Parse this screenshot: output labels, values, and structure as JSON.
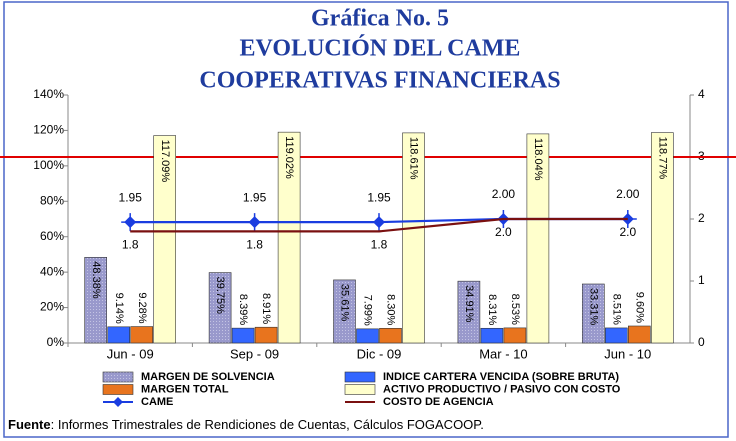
{
  "chart_data": {
    "type": "bar",
    "title": [
      "Gráfica No. 5",
      "EVOLUCIÓN DEL CAME",
      "COOPERATIVAS FINANCIERAS"
    ],
    "categories": [
      "Jun - 09",
      "Sep - 09",
      "Dic - 09",
      "Mar - 10",
      "Jun - 10"
    ],
    "ylim": [
      0,
      140
    ],
    "yticks": [
      {
        "value": 0,
        "label": "0%"
      },
      {
        "value": 20,
        "label": "20%"
      },
      {
        "value": 40,
        "label": "40%"
      },
      {
        "value": 60,
        "label": "60%"
      },
      {
        "value": 80,
        "label": "80%"
      },
      {
        "value": 100,
        "label": "100%"
      },
      {
        "value": 120,
        "label": "120%"
      },
      {
        "value": 140,
        "label": "140%"
      }
    ],
    "y2lim": [
      0,
      4
    ],
    "y2ticks": [
      0,
      1,
      2,
      3,
      4
    ],
    "reference_line": {
      "axis": "y2",
      "value": 3,
      "color": "#e00000"
    },
    "series": [
      {
        "name": "MARGEN DE SOLVENCIA",
        "type": "bar",
        "color": "#9999cc",
        "values": [
          48.38,
          39.75,
          35.61,
          34.91,
          33.31
        ],
        "value_labels": [
          "48.38%",
          "39.75%",
          "35.61%",
          "34.91%",
          "33.31%"
        ]
      },
      {
        "name": "INDICE CARTERA VENCIDA (SOBRE BRUTA)",
        "type": "bar",
        "color": "#3366ff",
        "values": [
          9.14,
          8.39,
          7.99,
          8.31,
          8.51
        ],
        "value_labels": [
          "9.14%",
          "8.39%",
          "7.99%",
          "8.31%",
          "8.51%"
        ]
      },
      {
        "name": "MARGEN TOTAL",
        "type": "bar",
        "color": "#e8741e",
        "values": [
          9.28,
          8.91,
          8.3,
          8.53,
          9.6
        ],
        "value_labels": [
          "9.28%",
          "8.91%",
          "8.30%",
          "8.53%",
          "9.60%"
        ]
      },
      {
        "name": "ACTIVO PRODUCTIVO / PASIVO CON COSTO",
        "type": "bar",
        "color": "#ffffcc",
        "values": [
          117.09,
          119.02,
          118.61,
          118.04,
          118.77
        ],
        "value_labels": [
          "117.09%",
          "119.02%",
          "118.61%",
          "118.04%",
          "118.77%"
        ]
      },
      {
        "name": "CAME",
        "type": "line",
        "axis": "y2",
        "color": "#1a3de0",
        "values": [
          1.95,
          1.95,
          1.95,
          2.0,
          2.0
        ],
        "value_labels": [
          "1.95",
          "1.95",
          "1.95",
          "2.00",
          "2.00"
        ]
      },
      {
        "name": "COSTO DE AGENCIA",
        "type": "line",
        "axis": "y2",
        "color": "#7a1010",
        "values": [
          1.8,
          1.8,
          1.8,
          2.0,
          2.0
        ],
        "value_labels": [
          "1.8",
          "1.8",
          "1.8",
          "2.0",
          "2.0"
        ]
      }
    ],
    "source_label": "Fuente",
    "source": ": Informes Trimestrales de Rendiciones de Cuentas, Cálculos FOGACOOP."
  }
}
